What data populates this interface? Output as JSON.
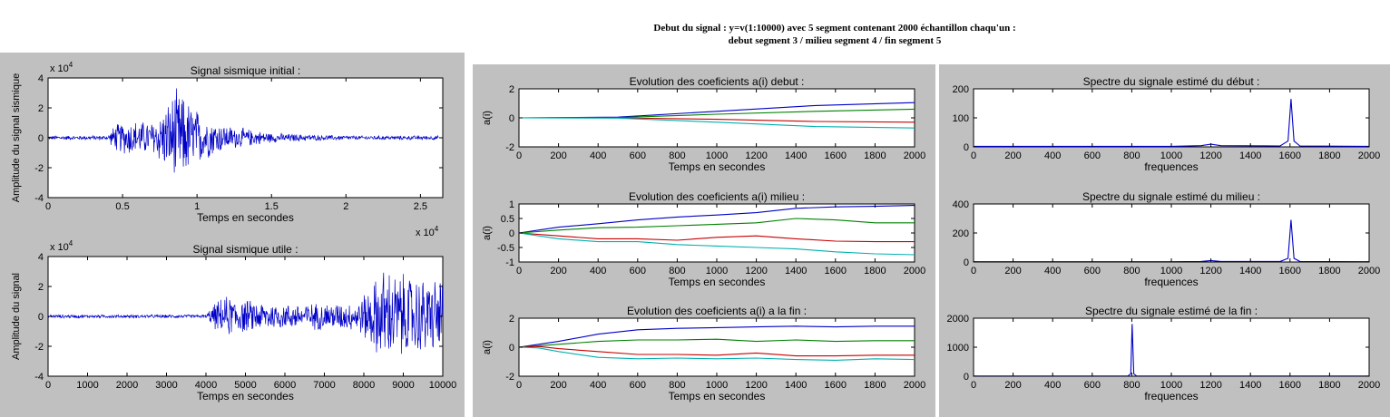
{
  "figure_title": "Debut du signal : y=v(1:10000) avec 5 segment contenant 2000 échantillon chaqu'un :\ndebut segment 3 / milieu segment 4 / fin segment 5",
  "colors": {
    "background": "#c0c0c0",
    "axes_face": "#ffffff",
    "series": [
      "#0000c8",
      "#008000",
      "#c80000",
      "#00b0b0"
    ]
  },
  "chart_data": [
    {
      "type": "line",
      "title": "Signal sismique initial :",
      "xlabel": "Temps en secondes",
      "ylabel": "Amplitude du signal sismique",
      "x_exponent": "x 10^4",
      "y_exponent": "x 10^4",
      "xlim": [
        0,
        2.65
      ],
      "ylim": [
        -4,
        4
      ],
      "xticks": [
        0,
        0.5,
        1,
        1.5,
        2,
        2.5
      ],
      "xtick_labels": [
        "0",
        "0.5",
        "1",
        "1.5",
        "2",
        "2.5"
      ],
      "yticks": [
        -4,
        -2,
        0,
        2,
        4
      ],
      "ytick_labels": [
        "-4",
        "-2",
        "0",
        "2",
        "4"
      ],
      "x_end": 2.62,
      "envelope": {
        "x": [
          0,
          0.4,
          0.45,
          0.55,
          0.7,
          0.8,
          0.85,
          0.9,
          0.95,
          1.05,
          1.2,
          1.5,
          1.8,
          2.1,
          2.4,
          2.62
        ],
        "amp": [
          0.15,
          0.15,
          1.0,
          1.3,
          1.2,
          2.5,
          3.5,
          3.2,
          2.6,
          1.6,
          0.9,
          0.35,
          0.2,
          0.15,
          0.15,
          0.15
        ]
      },
      "series": [
        {
          "color": "#0000c8",
          "noise": true
        }
      ]
    },
    {
      "type": "line",
      "title": "Signal sismique utile :",
      "xlabel": "Temps en secondes",
      "ylabel": "Amplitude du signal",
      "y_exponent": "x 10^4",
      "xlim": [
        0,
        10000
      ],
      "ylim": [
        -4,
        4
      ],
      "xticks": [
        0,
        1000,
        2000,
        3000,
        4000,
        5000,
        6000,
        7000,
        8000,
        9000,
        10000
      ],
      "xtick_labels": [
        "0",
        "1000",
        "2000",
        "3000",
        "4000",
        "5000",
        "6000",
        "7000",
        "8000",
        "9000",
        "10000"
      ],
      "yticks": [
        -4,
        -2,
        0,
        2,
        4
      ],
      "ytick_labels": [
        "-4",
        "-2",
        "0",
        "2",
        "4"
      ],
      "x_end": 10000,
      "envelope": {
        "x": [
          0,
          4000,
          4200,
          4500,
          5000,
          6000,
          7000,
          7800,
          8200,
          8500,
          8800,
          9200,
          9600,
          10000
        ],
        "amp": [
          0.12,
          0.12,
          0.9,
          1.5,
          1.2,
          0.9,
          1.0,
          1.0,
          2.3,
          3.6,
          3.2,
          3.0,
          2.8,
          2.8
        ]
      },
      "series": [
        {
          "color": "#0000c8",
          "noise": true
        }
      ]
    },
    {
      "type": "line",
      "title": "Evolution des coeficients a(i) debut :",
      "xlabel": "Temps en secondes",
      "ylabel": "a(i)",
      "xlim": [
        0,
        2000
      ],
      "ylim": [
        -2,
        2
      ],
      "xticks": [
        0,
        200,
        400,
        600,
        800,
        1000,
        1200,
        1400,
        1600,
        1800,
        2000
      ],
      "xtick_labels": [
        "0",
        "200",
        "400",
        "600",
        "800",
        "1000",
        "1200",
        "1400",
        "1600",
        "1800",
        "2000"
      ],
      "yticks": [
        -2,
        0,
        2
      ],
      "ytick_labels": [
        "-2",
        "0",
        "2"
      ],
      "series": [
        {
          "color": "#0000c8",
          "x": [
            0,
            500,
            1000,
            1500,
            2000
          ],
          "y": [
            0,
            0.05,
            0.45,
            0.85,
            1.05
          ]
        },
        {
          "color": "#008000",
          "x": [
            0,
            500,
            1000,
            1500,
            2000
          ],
          "y": [
            0,
            0.02,
            0.25,
            0.45,
            0.6
          ]
        },
        {
          "color": "#c80000",
          "x": [
            0,
            500,
            1000,
            1500,
            2000
          ],
          "y": [
            0,
            0.0,
            -0.1,
            -0.25,
            -0.3
          ]
        },
        {
          "color": "#00b0b0",
          "x": [
            0,
            500,
            1000,
            1500,
            2000
          ],
          "y": [
            0,
            -0.02,
            -0.3,
            -0.6,
            -0.7
          ]
        }
      ]
    },
    {
      "type": "line",
      "title": "Evolution des coeficients a(i) milieu  :",
      "xlabel": "Temps en secondes",
      "ylabel": "a(i)",
      "xlim": [
        0,
        2000
      ],
      "ylim": [
        -1,
        1
      ],
      "xticks": [
        0,
        200,
        400,
        600,
        800,
        1000,
        1200,
        1400,
        1600,
        1800,
        2000
      ],
      "xtick_labels": [
        "0",
        "200",
        "400",
        "600",
        "800",
        "1000",
        "1200",
        "1400",
        "1600",
        "1800",
        "2000"
      ],
      "yticks": [
        -1,
        -0.5,
        0,
        0.5,
        1
      ],
      "ytick_labels": [
        "-1",
        "-0.5",
        "0",
        "0.5",
        "1"
      ],
      "series": [
        {
          "color": "#0000c8",
          "x": [
            0,
            200,
            400,
            600,
            800,
            1000,
            1200,
            1400,
            1600,
            1800,
            2000
          ],
          "y": [
            0,
            0.2,
            0.32,
            0.45,
            0.55,
            0.62,
            0.7,
            0.85,
            0.9,
            0.92,
            0.95
          ]
        },
        {
          "color": "#008000",
          "x": [
            0,
            200,
            400,
            600,
            800,
            1000,
            1200,
            1400,
            1600,
            1800,
            2000
          ],
          "y": [
            0,
            0.1,
            0.18,
            0.2,
            0.25,
            0.3,
            0.35,
            0.5,
            0.45,
            0.35,
            0.35
          ]
        },
        {
          "color": "#c80000",
          "x": [
            0,
            200,
            400,
            600,
            800,
            1000,
            1200,
            1400,
            1600,
            1800,
            2000
          ],
          "y": [
            0,
            -0.1,
            -0.2,
            -0.2,
            -0.25,
            -0.15,
            -0.1,
            -0.2,
            -0.28,
            -0.3,
            -0.3
          ]
        },
        {
          "color": "#00b0b0",
          "x": [
            0,
            200,
            400,
            600,
            800,
            1000,
            1200,
            1400,
            1600,
            1800,
            2000
          ],
          "y": [
            0,
            -0.2,
            -0.3,
            -0.3,
            -0.4,
            -0.45,
            -0.5,
            -0.55,
            -0.65,
            -0.72,
            -0.75
          ]
        }
      ]
    },
    {
      "type": "line",
      "title": "Evolution des coeficients a(i) a la fin  :",
      "xlabel": "Temps en secondes",
      "ylabel": "a(i)",
      "xlim": [
        0,
        2000
      ],
      "ylim": [
        -2,
        2
      ],
      "xticks": [
        0,
        200,
        400,
        600,
        800,
        1000,
        1200,
        1400,
        1600,
        1800,
        2000
      ],
      "xtick_labels": [
        "0",
        "200",
        "400",
        "600",
        "800",
        "1000",
        "1200",
        "1400",
        "1600",
        "1800",
        "2000"
      ],
      "yticks": [
        -2,
        0,
        2
      ],
      "ytick_labels": [
        "-2",
        "0",
        "2"
      ],
      "series": [
        {
          "color": "#0000c8",
          "x": [
            0,
            100,
            200,
            400,
            600,
            800,
            1000,
            1200,
            1400,
            1600,
            1800,
            2000
          ],
          "y": [
            0,
            0.2,
            0.4,
            0.9,
            1.2,
            1.3,
            1.35,
            1.4,
            1.45,
            1.4,
            1.45,
            1.45
          ]
        },
        {
          "color": "#008000",
          "x": [
            0,
            100,
            200,
            400,
            600,
            800,
            1000,
            1200,
            1400,
            1600,
            1800,
            2000
          ],
          "y": [
            0,
            0.1,
            0.2,
            0.4,
            0.5,
            0.5,
            0.55,
            0.4,
            0.5,
            0.4,
            0.45,
            0.45
          ]
        },
        {
          "color": "#c80000",
          "x": [
            0,
            100,
            200,
            400,
            600,
            800,
            1000,
            1200,
            1400,
            1600,
            1800,
            2000
          ],
          "y": [
            0,
            0.05,
            -0.1,
            -0.3,
            -0.5,
            -0.5,
            -0.55,
            -0.4,
            -0.6,
            -0.6,
            -0.55,
            -0.55
          ]
        },
        {
          "color": "#00b0b0",
          "x": [
            0,
            100,
            200,
            400,
            600,
            800,
            1000,
            1200,
            1400,
            1600,
            1800,
            2000
          ],
          "y": [
            0,
            -0.05,
            -0.3,
            -0.7,
            -0.8,
            -0.75,
            -0.8,
            -0.75,
            -0.85,
            -0.9,
            -0.8,
            -0.85
          ]
        }
      ]
    },
    {
      "type": "line",
      "title": "Spectre du signale estimé du début :",
      "xlabel": "frequences",
      "ylabel": "",
      "xlim": [
        0,
        2000
      ],
      "ylim": [
        0,
        200
      ],
      "xticks": [
        0,
        200,
        400,
        600,
        800,
        1000,
        1200,
        1400,
        1600,
        1800,
        2000
      ],
      "xtick_labels": [
        "0",
        "200",
        "400",
        "600",
        "800",
        "1000",
        "1200",
        "1400",
        "1600",
        "1800",
        "2000"
      ],
      "yticks": [
        0,
        100,
        200
      ],
      "ytick_labels": [
        "0",
        "100",
        "200"
      ],
      "series": [
        {
          "color": "#0000c8",
          "x": [
            0,
            1000,
            1150,
            1200,
            1250,
            1550,
            1590,
            1605,
            1620,
            1650,
            2000
          ],
          "y": [
            2,
            2,
            4,
            9,
            4,
            3,
            20,
            165,
            20,
            3,
            2
          ]
        }
      ]
    },
    {
      "type": "line",
      "title": "Spectre du signale estimé du milieu :",
      "xlabel": "frequences",
      "ylabel": "",
      "xlim": [
        0,
        2000
      ],
      "ylim": [
        0,
        400
      ],
      "xticks": [
        0,
        200,
        400,
        600,
        800,
        1000,
        1200,
        1400,
        1600,
        1800,
        2000
      ],
      "xtick_labels": [
        "0",
        "200",
        "400",
        "600",
        "800",
        "1000",
        "1200",
        "1400",
        "1600",
        "1800",
        "2000"
      ],
      "yticks": [
        0,
        200,
        400
      ],
      "ytick_labels": [
        "0",
        "200",
        "400"
      ],
      "series": [
        {
          "color": "#0000c8",
          "x": [
            0,
            1000,
            1150,
            1200,
            1250,
            1550,
            1590,
            1605,
            1620,
            1650,
            2000
          ],
          "y": [
            2,
            2,
            4,
            10,
            4,
            4,
            25,
            290,
            25,
            4,
            2
          ]
        }
      ]
    },
    {
      "type": "line",
      "title": "Spectre du signale estimé de la fin :",
      "xlabel": "frequences",
      "ylabel": "",
      "xlim": [
        0,
        2000
      ],
      "ylim": [
        0,
        2000
      ],
      "xticks": [
        0,
        200,
        400,
        600,
        800,
        1000,
        1200,
        1400,
        1600,
        1800,
        2000
      ],
      "xtick_labels": [
        "0",
        "200",
        "400",
        "600",
        "800",
        "1000",
        "1200",
        "1400",
        "1600",
        "1800",
        "2000"
      ],
      "yticks": [
        0,
        1000,
        2000
      ],
      "ytick_labels": [
        "0",
        "1000",
        "2000"
      ],
      "series": [
        {
          "color": "#0000c8",
          "x": [
            0,
            780,
            795,
            802,
            810,
            825,
            2000
          ],
          "y": [
            5,
            5,
            80,
            1800,
            80,
            5,
            5
          ]
        }
      ]
    }
  ]
}
